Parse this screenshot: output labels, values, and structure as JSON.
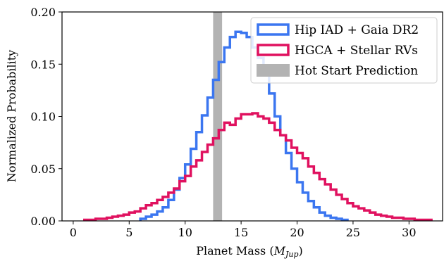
{
  "chart_data": {
    "type": "histogram",
    "xlabel_prefix": "Planet Mass (",
    "xlabel_symbol": "M",
    "xlabel_subscript": "Jup",
    "xlabel_suffix": ")",
    "ylabel": "Normalized Probability",
    "xlim": [
      -1,
      33
    ],
    "ylim": [
      0,
      0.2
    ],
    "x_ticks": [
      0,
      5,
      10,
      15,
      20,
      25,
      30
    ],
    "x_tick_labels": [
      "0",
      "5",
      "10",
      "15",
      "20",
      "25",
      "30"
    ],
    "y_ticks": [
      0.0,
      0.05,
      0.1,
      0.15,
      0.2
    ],
    "y_tick_labels": [
      "0.00",
      "0.05",
      "0.10",
      "0.15",
      "0.20"
    ],
    "grid": false,
    "legend_position": "top-right",
    "bin_width": 0.5,
    "prediction_band": {
      "name": "Hot Start Prediction",
      "x_min": 12.5,
      "x_max": 13.3,
      "color": "#b3b3b3"
    },
    "series": [
      {
        "name": "Hip IAD + Gaia DR2",
        "color": "#3b76f0",
        "bin_start": 6.0,
        "values": [
          0.002,
          0.004,
          0.006,
          0.009,
          0.013,
          0.02,
          0.03,
          0.041,
          0.054,
          0.069,
          0.085,
          0.101,
          0.118,
          0.135,
          0.152,
          0.166,
          0.176,
          0.181,
          0.18,
          0.176,
          0.166,
          0.156,
          0.14,
          0.122,
          0.1,
          0.082,
          0.065,
          0.05,
          0.037,
          0.027,
          0.019,
          0.013,
          0.008,
          0.005,
          0.003,
          0.002,
          0.001
        ]
      },
      {
        "name": "HGCA + Stellar RVs",
        "color": "#e0115f",
        "bin_start": 1.0,
        "values": [
          0.001,
          0.001,
          0.002,
          0.002,
          0.003,
          0.004,
          0.005,
          0.006,
          0.008,
          0.009,
          0.012,
          0.015,
          0.017,
          0.02,
          0.023,
          0.027,
          0.031,
          0.038,
          0.043,
          0.052,
          0.058,
          0.066,
          0.073,
          0.079,
          0.087,
          0.094,
          0.092,
          0.098,
          0.102,
          0.102,
          0.103,
          0.1,
          0.098,
          0.094,
          0.087,
          0.082,
          0.077,
          0.07,
          0.065,
          0.06,
          0.052,
          0.046,
          0.04,
          0.035,
          0.03,
          0.025,
          0.021,
          0.017,
          0.014,
          0.012,
          0.01,
          0.008,
          0.006,
          0.005,
          0.004,
          0.003,
          0.003,
          0.002,
          0.002,
          0.001,
          0.001,
          0.001
        ]
      }
    ]
  }
}
